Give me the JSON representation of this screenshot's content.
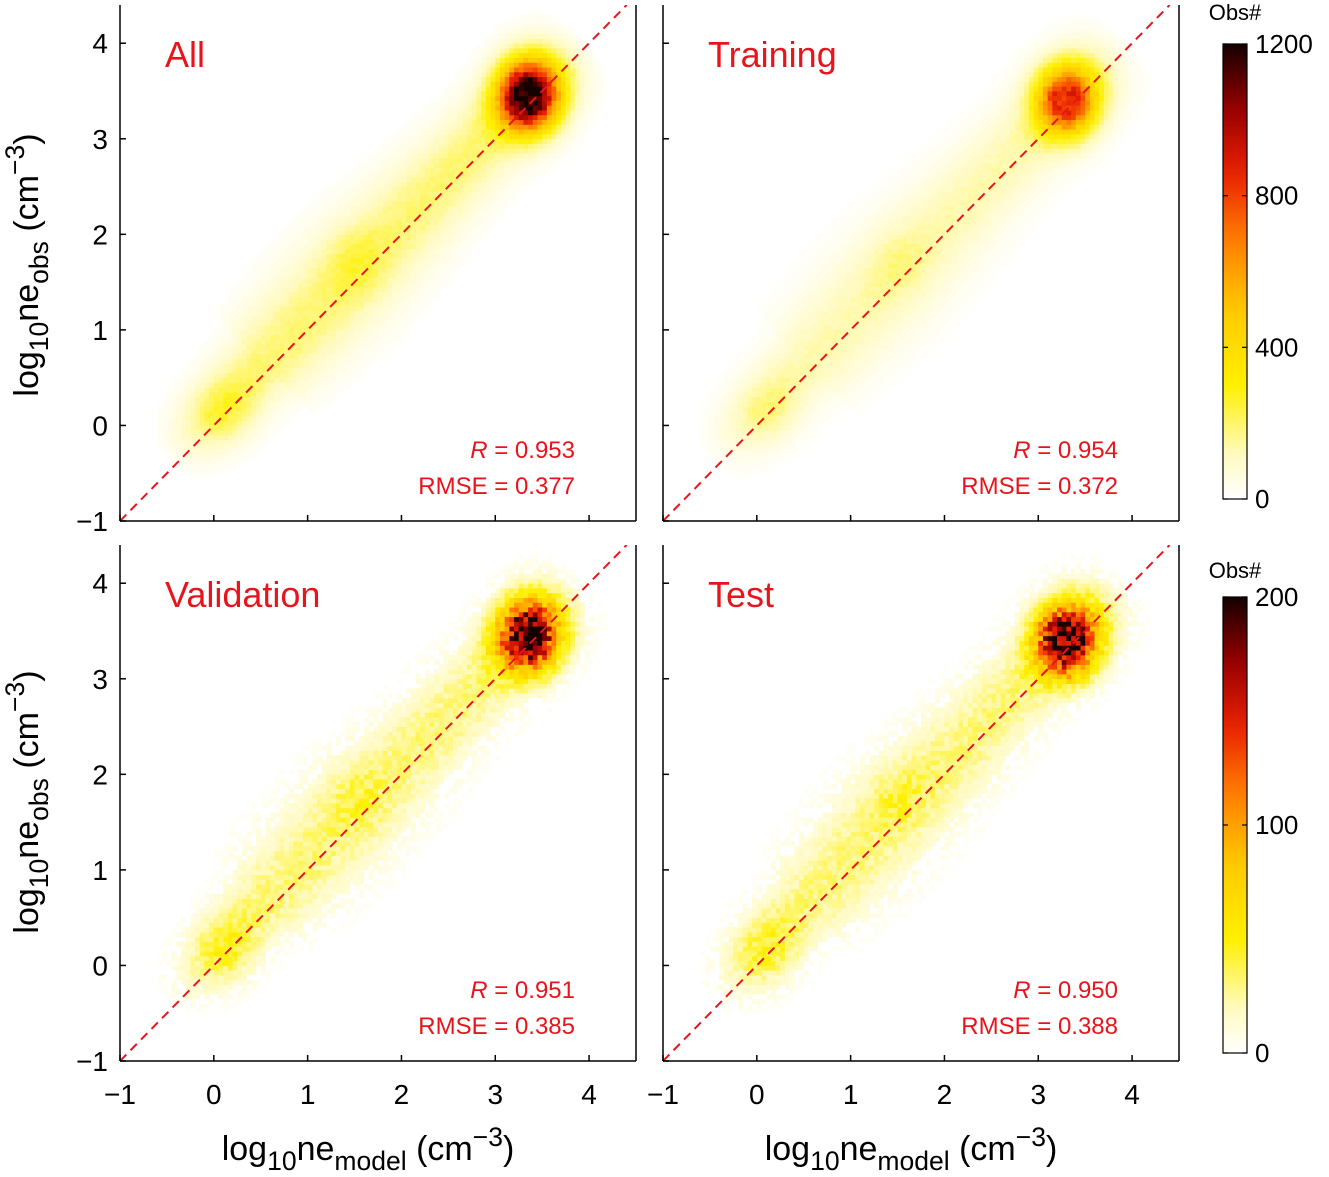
{
  "chart_data": [
    {
      "type": "heatmap",
      "title": "All",
      "xlabel": "log10ne_model (cm^-3)",
      "ylabel": "log10ne_obs (cm^-3)",
      "xlim": [
        -1,
        4.5
      ],
      "ylim": [
        -1,
        4.4
      ],
      "x_ticks": [
        "−1",
        "0",
        "1",
        "2",
        "3",
        "4"
      ],
      "y_ticks": [
        "−1",
        "0",
        "1",
        "2",
        "3",
        "4"
      ],
      "stats": {
        "r_label": "R",
        "r_value": "= 0.953",
        "rmse_text": "RMSE = 0.377"
      },
      "reference_line": "y = x",
      "density": {
        "clusters": [
          {
            "x": 0.15,
            "y": 0.15,
            "peak": 360
          },
          {
            "x": 1.5,
            "y": 1.7,
            "peak": 320
          },
          {
            "x": 3.35,
            "y": 3.45,
            "peak": 1200
          }
        ]
      }
    },
    {
      "type": "heatmap",
      "title": "Training",
      "xlabel": "log10ne_model (cm^-3)",
      "ylabel": "log10ne_obs (cm^-3)",
      "xlim": [
        -1,
        4.5
      ],
      "ylim": [
        -1,
        4.4
      ],
      "x_ticks": [
        "−1",
        "0",
        "1",
        "2",
        "3",
        "4"
      ],
      "y_ticks": [
        "−1",
        "0",
        "1",
        "2",
        "3",
        "4"
      ],
      "stats": {
        "r_label": "R",
        "r_value": "= 0.954",
        "rmse_text": "RMSE = 0.372"
      },
      "reference_line": "y = x",
      "density": {
        "clusters": [
          {
            "x": 0.15,
            "y": 0.15,
            "peak": 260
          },
          {
            "x": 1.5,
            "y": 1.7,
            "peak": 240
          },
          {
            "x": 3.3,
            "y": 3.4,
            "peak": 850
          }
        ]
      }
    },
    {
      "type": "heatmap",
      "title": "Validation",
      "xlabel": "log10ne_model (cm^-3)",
      "ylabel": "log10ne_obs (cm^-3)",
      "xlim": [
        -1,
        4.5
      ],
      "ylim": [
        -1,
        4.4
      ],
      "x_ticks": [
        "−1",
        "0",
        "1",
        "2",
        "3",
        "4"
      ],
      "y_ticks": [
        "−1",
        "0",
        "1",
        "2",
        "3",
        "4"
      ],
      "stats": {
        "r_label": "R",
        "r_value": "= 0.951",
        "rmse_text": "RMSE = 0.385"
      },
      "reference_line": "y = x",
      "density": {
        "clusters": [
          {
            "x": 0.15,
            "y": 0.15,
            "peak": 75
          },
          {
            "x": 1.5,
            "y": 1.75,
            "peak": 55
          },
          {
            "x": 3.35,
            "y": 3.45,
            "peak": 195
          }
        ]
      }
    },
    {
      "type": "heatmap",
      "title": "Test",
      "xlabel": "log10ne_model (cm^-3)",
      "ylabel": "log10ne_obs (cm^-3)",
      "xlim": [
        -1,
        4.5
      ],
      "ylim": [
        -1,
        4.4
      ],
      "x_ticks": [
        "−1",
        "0",
        "1",
        "2",
        "3",
        "4"
      ],
      "y_ticks": [
        "−1",
        "0",
        "1",
        "2",
        "3",
        "4"
      ],
      "stats": {
        "r_label": "R",
        "r_value": "= 0.950",
        "rmse_text": "RMSE = 0.388"
      },
      "reference_line": "y = x",
      "density": {
        "clusters": [
          {
            "x": 0.15,
            "y": 0.15,
            "peak": 75
          },
          {
            "x": 1.5,
            "y": 1.75,
            "peak": 55
          },
          {
            "x": 3.3,
            "y": 3.4,
            "peak": 195
          }
        ]
      }
    }
  ],
  "axis_labels": {
    "y": {
      "prefix": "log",
      "sub1": "10",
      "mid": "ne",
      "sub2": "obs",
      "unit": " (cm",
      "sup": "−3",
      "close": ")"
    },
    "x": {
      "prefix": "log",
      "sub1": "10",
      "mid": "ne",
      "sub2": "model",
      "unit": " (cm",
      "sup": "−3",
      "close": ")"
    }
  },
  "colorbars": [
    {
      "title": "Obs#",
      "range": [
        0,
        1200
      ],
      "ticks": [
        "0",
        "400",
        "800",
        "1200"
      ],
      "tick_values": [
        0,
        400,
        800,
        1200
      ],
      "applies_to": "top row"
    },
    {
      "title": "Obs#",
      "range": [
        0,
        200
      ],
      "ticks": [
        "0",
        "100",
        "200"
      ],
      "tick_values": [
        0,
        100,
        200
      ],
      "applies_to": "bottom row"
    }
  ],
  "colors": {
    "label_red": "#e8141c",
    "reference_line": "#e8141c",
    "colormap": "hot (reversed): white-yellow-orange-red-black"
  }
}
